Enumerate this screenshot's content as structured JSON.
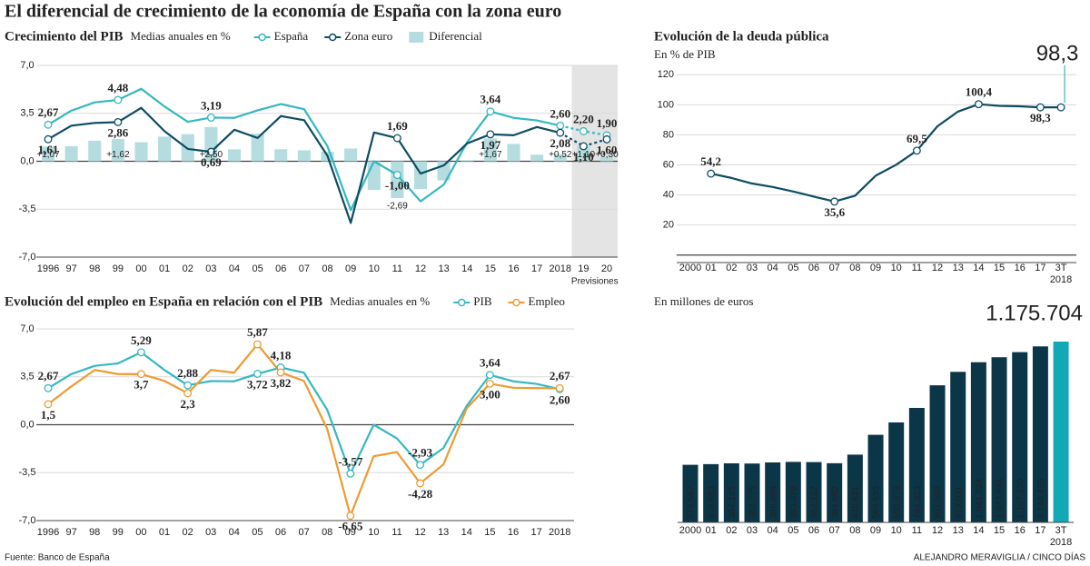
{
  "title": "El diferencial de crecimiento de la economía de España con la zona euro",
  "source": "Fuente: Banco de España",
  "credit": "ALEJANDRO MERAVIGLIA / CINCO DÍAS",
  "chart_data": [
    {
      "type": "line",
      "title": "Crecimiento del PIB",
      "subtitle": "Medias anuales en %",
      "categories": [
        "1996",
        "97",
        "98",
        "99",
        "00",
        "01",
        "02",
        "03",
        "04",
        "05",
        "06",
        "07",
        "08",
        "09",
        "10",
        "11",
        "12",
        "13",
        "14",
        "15",
        "16",
        "17",
        "2018",
        "19",
        "20"
      ],
      "series": [
        {
          "name": "España",
          "color": "#35b8c0",
          "values": [
            2.67,
            3.7,
            4.3,
            4.48,
            5.29,
            4.0,
            2.88,
            3.19,
            3.17,
            3.72,
            4.18,
            3.8,
            1.1,
            -3.57,
            0.0,
            -1.0,
            -2.93,
            -1.7,
            1.38,
            3.64,
            3.17,
            2.98,
            2.6,
            2.2,
            1.9
          ],
          "value_labels": [
            "2,67",
            null,
            null,
            "4,48",
            null,
            null,
            null,
            "3,19",
            null,
            null,
            null,
            null,
            null,
            null,
            null,
            "-1,00",
            null,
            null,
            null,
            "3,64",
            null,
            null,
            "2,60",
            "2,20",
            "1,90"
          ]
        },
        {
          "name": "Zona euro",
          "color": "#0d4d63",
          "values": [
            1.61,
            2.6,
            2.8,
            2.86,
            3.9,
            2.2,
            0.9,
            0.69,
            2.3,
            1.7,
            3.3,
            3.0,
            0.4,
            -4.5,
            2.1,
            1.69,
            -0.9,
            -0.3,
            1.3,
            1.97,
            1.9,
            2.5,
            2.08,
            1.1,
            1.6
          ],
          "value_labels": [
            "1,61",
            null,
            null,
            "2,86",
            null,
            null,
            null,
            "0,69",
            null,
            null,
            null,
            null,
            null,
            null,
            null,
            "1,69",
            null,
            null,
            null,
            "1,97",
            null,
            null,
            "2,08",
            "1,10",
            "1,60"
          ]
        },
        {
          "name": "Diferencial",
          "type": "bar",
          "color": "#b5dde0",
          "values": [
            1.07,
            1.1,
            1.5,
            1.62,
            1.39,
            1.8,
            1.98,
            2.5,
            0.87,
            2.02,
            0.88,
            0.8,
            0.7,
            0.93,
            -2.1,
            -2.69,
            -2.03,
            -1.4,
            0.08,
            1.67,
            1.27,
            0.48,
            0.52,
            1.1,
            0.3
          ],
          "value_labels": [
            "+1,07",
            null,
            null,
            "+1,62",
            null,
            null,
            null,
            "+2,50",
            null,
            null,
            null,
            null,
            null,
            null,
            null,
            "-2,69",
            null,
            null,
            null,
            "+1,67",
            null,
            null,
            "+0,52",
            "+1,10",
            "+0,30"
          ]
        }
      ],
      "ylim": [
        -7,
        7
      ],
      "yticks": [
        {
          "value": 7,
          "label": "7,0"
        },
        {
          "value": 3.5,
          "label": "3,5"
        },
        {
          "value": 0,
          "label": "0,0"
        },
        {
          "value": -3.5,
          "label": "-3,5"
        },
        {
          "value": -7,
          "label": "-7,0"
        }
      ],
      "grid": true,
      "legend": "top",
      "annotation": {
        "text": "Previsiones",
        "from": "19",
        "to": "20"
      }
    },
    {
      "type": "line",
      "title": "Evolución del empleo en España en relación con el PIB",
      "subtitle": "Medias anuales en %",
      "categories": [
        "1996",
        "97",
        "98",
        "99",
        "00",
        "01",
        "02",
        "03",
        "04",
        "05",
        "06",
        "07",
        "08",
        "09",
        "10",
        "11",
        "12",
        "13",
        "14",
        "15",
        "16",
        "17",
        "2018"
      ],
      "series": [
        {
          "name": "PIB",
          "color": "#35b8c0",
          "values": [
            2.67,
            3.7,
            4.3,
            4.48,
            5.29,
            4.0,
            2.88,
            3.19,
            3.17,
            3.72,
            4.18,
            3.8,
            1.1,
            -3.57,
            0.0,
            -1.0,
            -2.93,
            -1.7,
            1.38,
            3.64,
            3.17,
            2.98,
            2.6
          ],
          "value_labels": [
            "2,67",
            null,
            null,
            null,
            "5,29",
            null,
            "2,88",
            null,
            null,
            "3,72",
            "4,18",
            null,
            null,
            "-3,57",
            null,
            null,
            "-2,93",
            null,
            null,
            "3,64",
            null,
            null,
            "2,60"
          ]
        },
        {
          "name": "Empleo",
          "color": "#ef9a32",
          "values": [
            1.5,
            2.8,
            4.0,
            3.7,
            3.7,
            3.2,
            2.3,
            4.0,
            3.8,
            5.87,
            3.82,
            3.2,
            -0.3,
            -6.65,
            -2.3,
            -2.0,
            -4.28,
            -2.9,
            1.2,
            3.0,
            2.7,
            2.67,
            2.67
          ],
          "value_labels": [
            "1,5",
            null,
            null,
            null,
            "3,7",
            null,
            "2,3",
            null,
            null,
            "5,87",
            "3,82",
            null,
            null,
            "-6,65",
            null,
            null,
            "-4,28",
            null,
            null,
            "3,00",
            null,
            null,
            "2,67"
          ]
        }
      ],
      "ylim": [
        -7,
        7
      ],
      "yticks": [
        {
          "value": 7,
          "label": "7,0"
        },
        {
          "value": 3.5,
          "label": "3,5"
        },
        {
          "value": 0,
          "label": "0,0"
        },
        {
          "value": -3.5,
          "label": "-3,5"
        },
        {
          "value": -7,
          "label": "-7,0"
        }
      ],
      "grid": true,
      "legend": "top"
    },
    {
      "type": "line",
      "title": "Evolución de la deuda pública",
      "subtitle": "En % de PIB",
      "categories": [
        "2000",
        "01",
        "02",
        "03",
        "04",
        "05",
        "06",
        "07",
        "08",
        "09",
        "10",
        "11",
        "12",
        "13",
        "14",
        "15",
        "16",
        "17",
        "3T"
      ],
      "x_sublabel": "2018",
      "series": [
        {
          "color": "#0d4d63",
          "values": [
            null,
            54.2,
            51.3,
            47.6,
            45.3,
            42.3,
            38.9,
            35.6,
            39.5,
            52.8,
            60.1,
            69.5,
            85.7,
            95.5,
            100.4,
            99.3,
            99.0,
            98.3,
            98.3
          ],
          "value_labels": [
            null,
            "54,2",
            null,
            null,
            null,
            null,
            null,
            "35,6",
            null,
            null,
            null,
            "69,5",
            null,
            null,
            "100,4",
            null,
            null,
            "98,3",
            "98,3"
          ]
        }
      ],
      "highlight_color": "#12a8b6",
      "ylim": [
        -5,
        125
      ],
      "yticks": [
        20,
        40,
        60,
        80,
        100,
        120
      ],
      "grid": true
    },
    {
      "type": "bar",
      "subtitle": "En millones de euros",
      "categories": [
        "2000",
        "01",
        "02",
        "03",
        "04",
        "05",
        "06",
        "07",
        "08",
        "09",
        "10",
        "11",
        "12",
        "13",
        "14",
        "15",
        "16",
        "17",
        "3T"
      ],
      "x_sublabel": "2018",
      "values": [
        374557,
        378883,
        384145,
        382775,
        389888,
        393479,
        392132,
        384662,
        440621,
        569535,
        650079,
        744323,
        891502,
        979031,
        1041624,
        1073934,
        1107220,
        1144425,
        1175704
      ],
      "value_labels": [
        "374.557",
        "378.883",
        "384.145",
        "382.775",
        "389.888",
        "393.479",
        "392.132",
        "384.662",
        "440.621",
        "569.535",
        "650.079",
        "744.323",
        "891.502",
        "979.031",
        "1.041.624",
        "1.073.934",
        "1.107.220",
        "1.144.425",
        "1.175.704"
      ],
      "color": "#0b3648",
      "highlight_color": "#12a8b6"
    }
  ]
}
